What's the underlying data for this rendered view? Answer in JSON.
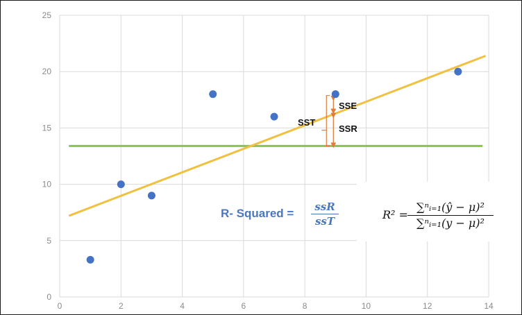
{
  "chart_data": {
    "type": "scatter",
    "x": [
      1,
      2,
      3,
      5,
      7,
      9,
      13
    ],
    "y": [
      3.3,
      10,
      9,
      18,
      16,
      18,
      20
    ],
    "xlim": [
      0,
      14
    ],
    "ylim": [
      0,
      25
    ],
    "x_ticks": [
      "0",
      "2",
      "4",
      "6",
      "8",
      "10",
      "12",
      "14"
    ],
    "y_ticks": [
      "0",
      "5",
      "10",
      "15",
      "20",
      "25"
    ],
    "grid": true,
    "regression_line": {
      "x": [
        0.3,
        13.9
      ],
      "y": [
        7.2,
        21.4
      ]
    },
    "mean_line": {
      "x": [
        0.3,
        13.8
      ],
      "y": 13.4
    },
    "annotations": {
      "sse": "SSE",
      "ssr": "SSR",
      "sst": "SST"
    },
    "colors": {
      "points": "#4472c4",
      "regression": "#f0c040",
      "mean": "#8cc152",
      "brackets": "#e07b39",
      "grid": "#d9d9d9"
    }
  },
  "r_squared": {
    "label": "R- Squared =",
    "numerator": "ssR",
    "denominator": "ssT"
  },
  "formula": {
    "lhs": "R² =",
    "numerator": "∑ⁿᵢ₌₁(ŷ − μ)²",
    "denominator": "∑ⁿᵢ₌₁(y − μ)²"
  }
}
